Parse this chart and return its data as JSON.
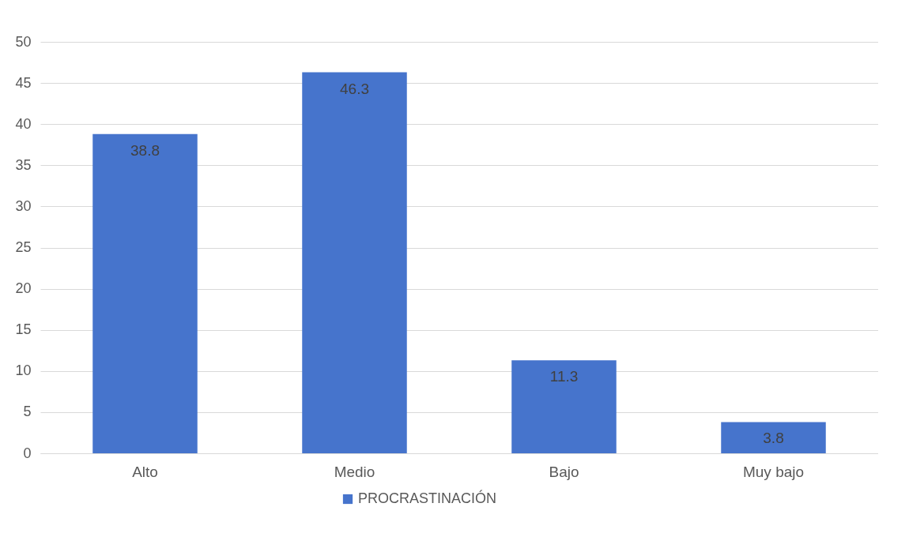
{
  "chart_data": {
    "type": "bar",
    "categories": [
      "Alto",
      "Medio",
      "Bajo",
      "Muy bajo"
    ],
    "series": [
      {
        "name": "PROCRASTINACIÓN",
        "color": "#4674cc",
        "values": [
          38.8,
          46.3,
          11.3,
          3.8
        ]
      }
    ],
    "ylim": [
      0,
      50
    ],
    "yticks": [
      0,
      5,
      10,
      15,
      20,
      25,
      30,
      35,
      40,
      45,
      50
    ],
    "grid": "y",
    "legend": "bottom",
    "data_labels": true
  }
}
